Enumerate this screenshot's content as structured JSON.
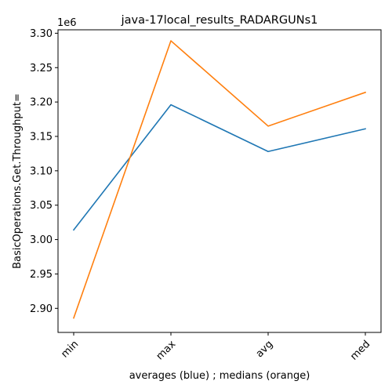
{
  "chart_data": {
    "type": "line",
    "title": "java-17local_results_RADARGUNs1",
    "xlabel": "averages (blue) ; medians (orange)",
    "ylabel": "BasicOperations.Get.Throughput=",
    "y_offset_label": "1e6",
    "categories": [
      "min",
      "max",
      "avg",
      "med"
    ],
    "ylim": [
      2.865,
      3.305
    ],
    "yticks": [
      2.9,
      2.95,
      3.0,
      3.05,
      3.1,
      3.15,
      3.2,
      3.25,
      3.3
    ],
    "ytick_labels": [
      "2.90",
      "2.95",
      "3.00",
      "3.05",
      "3.10",
      "3.15",
      "3.20",
      "3.25",
      "3.30"
    ],
    "grid": false,
    "series": [
      {
        "values": [
          3.014,
          3.196,
          3.128,
          3.161
        ],
        "color": "#1f77b4"
      },
      {
        "values": [
          2.886,
          3.289,
          3.165,
          3.214
        ],
        "color": "#ff7f0e"
      }
    ]
  }
}
